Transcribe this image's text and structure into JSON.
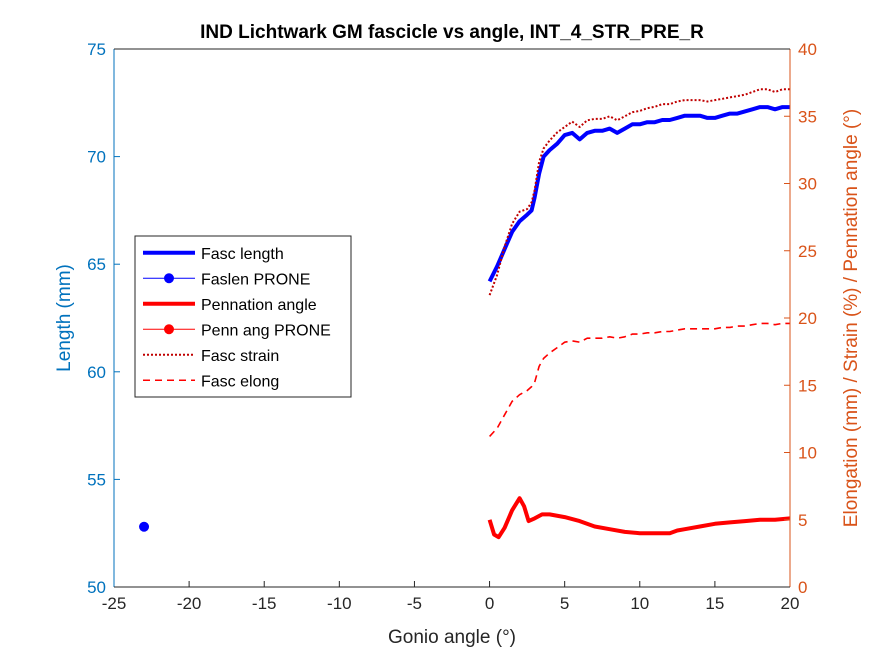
{
  "chart_data": {
    "type": "line",
    "title": "IND Lichtwark GM fascicle vs angle, INT_4_STR_PRE_R",
    "xlabel": "Gonio angle (°)",
    "ylabel_left": "Length (mm)",
    "ylabel_right": "Elongation (mm) / Strain (%) / Pennation angle (°)",
    "xlim": [
      -25,
      20
    ],
    "ylim_left": [
      50,
      75
    ],
    "ylim_right": [
      0,
      40
    ],
    "xticks": [
      "-25",
      "-20",
      "-15",
      "-10",
      "-5",
      "0",
      "5",
      "10",
      "15",
      "20"
    ],
    "yticks_left": [
      "50",
      "55",
      "60",
      "65",
      "70",
      "75"
    ],
    "yticks_right": [
      "0",
      "5",
      "10",
      "15",
      "20",
      "25",
      "30",
      "35",
      "40"
    ],
    "legend_position": "left-middle",
    "colors": {
      "fasc_length": "#0000FF",
      "pennation": "#FF0000",
      "strain": "#C00000",
      "elong": "#FF0000",
      "left_axis": "#0072BD",
      "right_axis": "#D95319"
    },
    "series": [
      {
        "name": "Fasc length",
        "axis": "left",
        "style": "solid-thick",
        "x": [
          0,
          0.5,
          1,
          1.5,
          2,
          2.5,
          2.8,
          3,
          3.3,
          3.6,
          4,
          4.5,
          5,
          5.5,
          6,
          6.5,
          7,
          7.5,
          8,
          8.5,
          9,
          9.5,
          10,
          10.5,
          11,
          11.5,
          12,
          12.5,
          13,
          13.5,
          14,
          14.5,
          15,
          15.5,
          16,
          16.5,
          17,
          17.5,
          18,
          18.5,
          19,
          19.5,
          20
        ],
        "y": [
          64.2,
          64.9,
          65.7,
          66.5,
          67.0,
          67.3,
          67.5,
          68.1,
          69.2,
          70.0,
          70.3,
          70.6,
          71.0,
          71.1,
          70.8,
          71.1,
          71.2,
          71.2,
          71.3,
          71.1,
          71.3,
          71.5,
          71.5,
          71.6,
          71.6,
          71.7,
          71.7,
          71.8,
          71.9,
          71.9,
          71.9,
          71.8,
          71.8,
          71.9,
          72.0,
          72.0,
          72.1,
          72.2,
          72.3,
          72.3,
          72.2,
          72.3,
          72.3
        ]
      },
      {
        "name": "Faslen PRONE",
        "axis": "left",
        "style": "marker",
        "x": [
          -23
        ],
        "y": [
          52.8
        ]
      },
      {
        "name": "Pennation angle",
        "axis": "right",
        "style": "solid-thick",
        "x": [
          0,
          0.3,
          0.6,
          1,
          1.5,
          2,
          2.3,
          2.6,
          3,
          3.5,
          4,
          5,
          6,
          7,
          8,
          9,
          10,
          11,
          12,
          12.5,
          13,
          14,
          15,
          16,
          17,
          18,
          19,
          20
        ],
        "y": [
          5.0,
          3.9,
          3.7,
          4.4,
          5.7,
          6.6,
          6.0,
          4.9,
          5.1,
          5.4,
          5.4,
          5.2,
          4.9,
          4.5,
          4.3,
          4.1,
          4.0,
          4.0,
          4.0,
          4.2,
          4.3,
          4.5,
          4.7,
          4.8,
          4.9,
          5.0,
          5.0,
          5.1
        ]
      },
      {
        "name": "Penn ang PRONE",
        "axis": "right",
        "style": "marker",
        "x": [],
        "y": []
      },
      {
        "name": "Fasc strain",
        "axis": "right",
        "style": "dotted",
        "x": [
          0,
          0.5,
          1,
          1.5,
          2,
          2.5,
          2.8,
          3,
          3.3,
          3.6,
          4,
          4.5,
          5,
          5.5,
          6,
          6.5,
          7,
          7.5,
          8,
          8.5,
          9,
          9.5,
          10,
          10.5,
          11,
          11.5,
          12,
          12.5,
          13,
          13.5,
          14,
          14.5,
          15,
          15.5,
          16,
          16.5,
          17,
          17.5,
          18,
          18.5,
          19,
          19.5,
          20
        ],
        "y": [
          21.7,
          23.2,
          25.3,
          27.0,
          27.9,
          28.1,
          28.6,
          29.5,
          31.6,
          32.6,
          33.2,
          33.8,
          34.2,
          34.6,
          34.2,
          34.7,
          34.8,
          34.8,
          35.0,
          34.7,
          35.0,
          35.3,
          35.4,
          35.6,
          35.7,
          35.9,
          35.9,
          36.1,
          36.2,
          36.2,
          36.2,
          36.1,
          36.2,
          36.3,
          36.4,
          36.5,
          36.6,
          36.8,
          37.0,
          37.0,
          36.8,
          37.0,
          37.0
        ]
      },
      {
        "name": "Fasc elong",
        "axis": "right",
        "style": "dashed",
        "x": [
          0,
          0.5,
          1,
          1.5,
          2,
          2.5,
          2.8,
          3,
          3.3,
          3.6,
          4,
          4.5,
          5,
          5.5,
          6,
          6.5,
          7,
          7.5,
          8,
          8.5,
          9,
          9.5,
          10,
          10.5,
          11,
          11.5,
          12,
          12.5,
          13,
          13.5,
          14,
          14.5,
          15,
          15.5,
          16,
          16.5,
          17,
          17.5,
          18,
          18.5,
          19,
          19.5,
          20
        ],
        "y": [
          11.2,
          11.8,
          12.8,
          13.8,
          14.3,
          14.6,
          14.9,
          15.2,
          16.4,
          17.0,
          17.4,
          17.8,
          18.2,
          18.3,
          18.2,
          18.5,
          18.5,
          18.5,
          18.6,
          18.5,
          18.6,
          18.8,
          18.8,
          18.9,
          18.9,
          19.0,
          19.0,
          19.1,
          19.2,
          19.2,
          19.2,
          19.2,
          19.2,
          19.3,
          19.3,
          19.4,
          19.4,
          19.5,
          19.6,
          19.6,
          19.5,
          19.6,
          19.6
        ]
      }
    ]
  }
}
